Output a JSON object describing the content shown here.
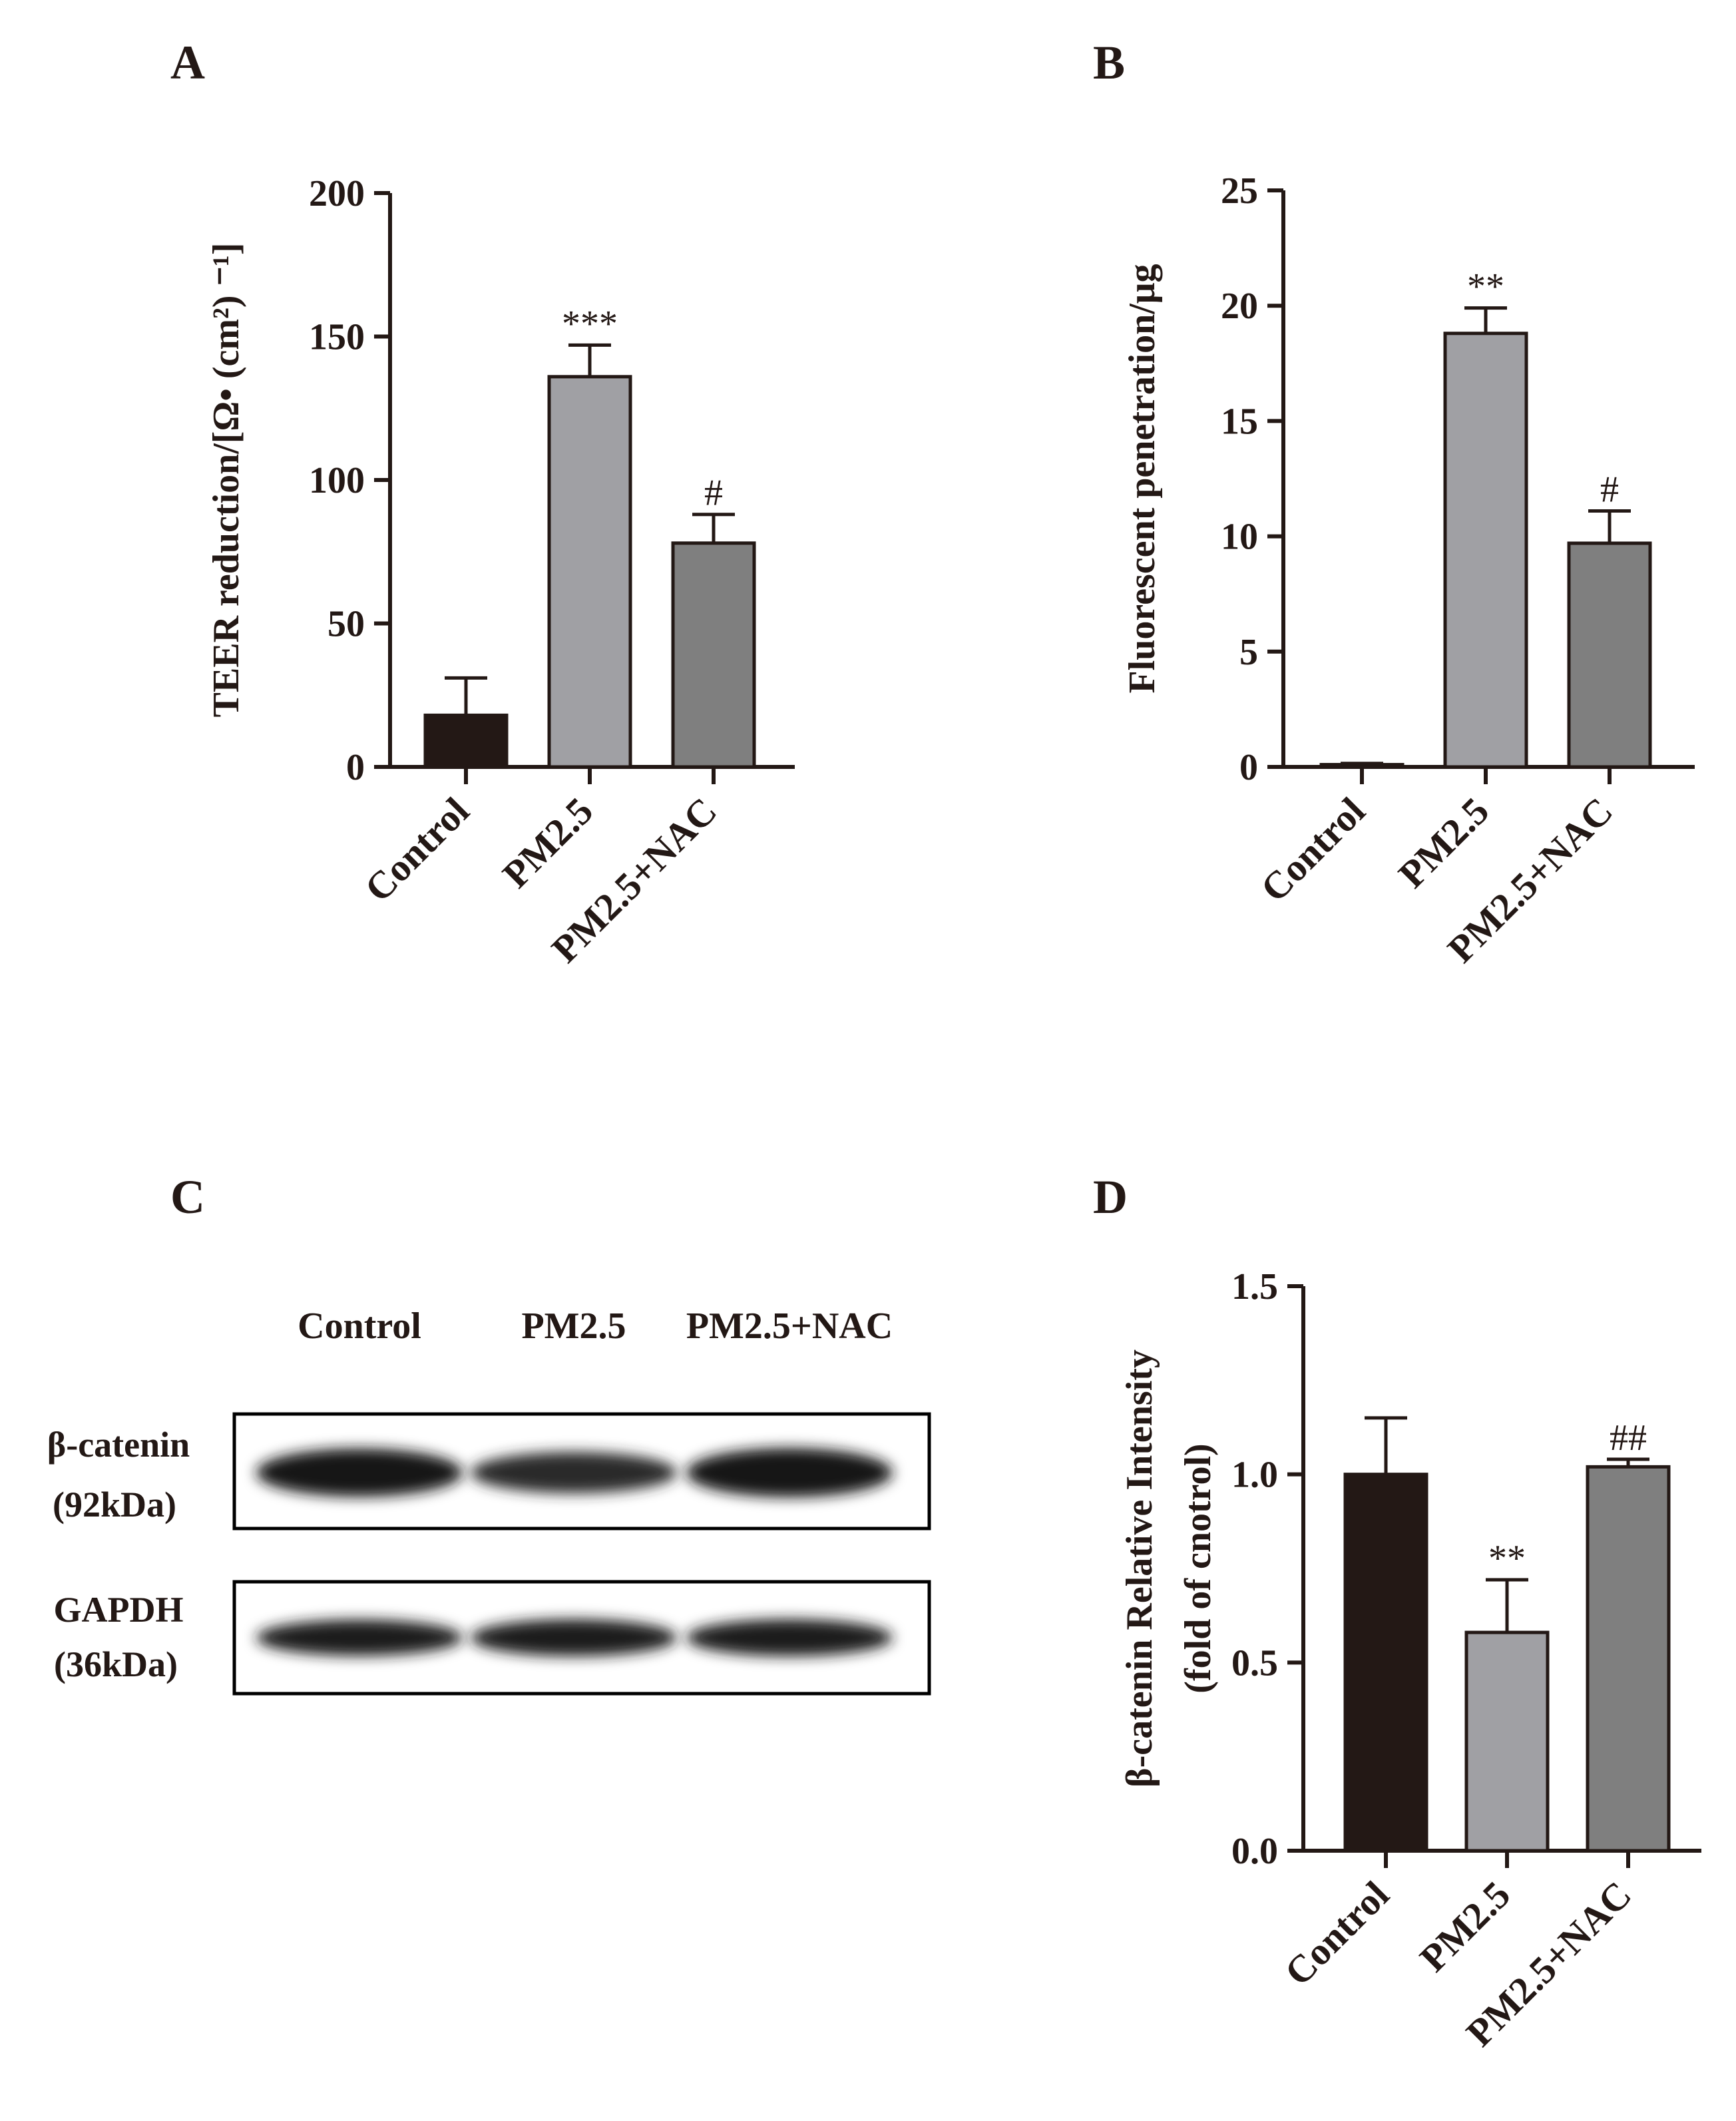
{
  "panels": {
    "a": "A",
    "b": "B",
    "c": "C",
    "d": "D"
  },
  "colors": {
    "control": "#231815",
    "pm25": "#a0a0a4",
    "pm25_nac": "#7f7f7f",
    "axis": "#231815"
  },
  "chart_data": [
    {
      "id": "A",
      "type": "bar",
      "title": "",
      "ylabel": "TEER reduction/[Ω• (cm²) ⁻¹]",
      "xlabel": "",
      "categories": [
        "Control",
        "PM2.5",
        "PM2.5+NAC"
      ],
      "values": [
        18,
        136,
        78
      ],
      "errors": [
        13,
        11,
        10
      ],
      "significance": [
        "",
        "***",
        "#"
      ],
      "ylim": [
        0,
        200
      ],
      "yticks": [
        0,
        50,
        100,
        150,
        200
      ],
      "grid": false
    },
    {
      "id": "B",
      "type": "bar",
      "title": "",
      "ylabel": "Fluorescent penetration/μg",
      "xlabel": "",
      "categories": [
        "Control",
        "PM2.5",
        "PM2.5+NAC"
      ],
      "values": [
        0.1,
        18.8,
        9.7
      ],
      "errors": [
        0.05,
        1.1,
        1.4
      ],
      "significance": [
        "",
        "**",
        "#"
      ],
      "ylim": [
        0,
        25
      ],
      "yticks": [
        0,
        5,
        10,
        15,
        20,
        25
      ],
      "grid": false
    },
    {
      "id": "D",
      "type": "bar",
      "title": "",
      "ylabel": "β-catenin Relative Intensity",
      "ylabel2": "(fold of cnotrol)",
      "xlabel": "",
      "categories": [
        "Control",
        "PM2.5",
        "PM2.5+NAC"
      ],
      "values": [
        1.0,
        0.58,
        1.02
      ],
      "errors": [
        0.15,
        0.14,
        0.02
      ],
      "significance": [
        "",
        "**",
        "##"
      ],
      "ylim": [
        0,
        1.5
      ],
      "yticks": [
        "0.0",
        "0.5",
        "1.0",
        "1.5"
      ],
      "grid": false
    }
  ],
  "blot": {
    "lanes": [
      "Control",
      "PM2.5",
      "PM2.5+NAC"
    ],
    "proteins": [
      {
        "name": "β-catenin",
        "size": "(92kDa)",
        "intensity": [
          0.95,
          0.6,
          1.0
        ]
      },
      {
        "name": "GAPDH",
        "size": "(36kDa)",
        "intensity": [
          0.85,
          0.9,
          0.9
        ]
      }
    ]
  }
}
